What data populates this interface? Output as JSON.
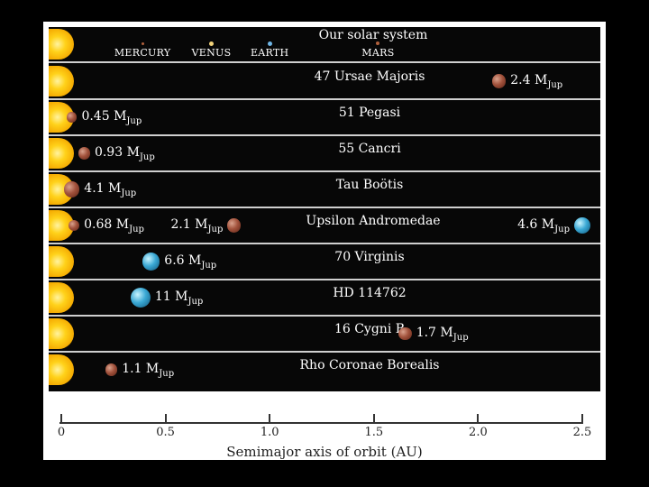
{
  "chart_data": {
    "type": "scatter",
    "xlabel": "Semimajor axis of orbit (AU)",
    "xlim": [
      0,
      2.5
    ],
    "xticks": [
      "0",
      "0.5",
      "1.0",
      "1.5",
      "2.0",
      "2.5"
    ],
    "mass_unit": "M",
    "mass_unit_sub": "Jup",
    "solar_system": {
      "name": "Our solar system",
      "planets": [
        {
          "label": "MERCURY",
          "au": 0.39,
          "color": "#b0603c"
        },
        {
          "label": "VENUS",
          "au": 0.72,
          "color": "#f2d27a"
        },
        {
          "label": "EARTH",
          "au": 1.0,
          "color": "#6fb6e6"
        },
        {
          "label": "MARS",
          "au": 1.52,
          "color": "#b0603c"
        }
      ]
    },
    "systems": [
      {
        "name": "47 Ursae Majoris",
        "planets": [
          {
            "au": 2.1,
            "mass": "2.4",
            "color": "red",
            "label_side": "right"
          }
        ]
      },
      {
        "name": "51 Pegasi",
        "planets": [
          {
            "au": 0.05,
            "mass": "0.45",
            "color": "red",
            "label_side": "right"
          }
        ]
      },
      {
        "name": "55 Cancri",
        "planets": [
          {
            "au": 0.11,
            "mass": "0.93",
            "color": "red",
            "label_side": "right"
          }
        ]
      },
      {
        "name": "Tau Boötis",
        "planets": [
          {
            "au": 0.05,
            "mass": "4.1",
            "color": "red",
            "label_side": "right"
          }
        ]
      },
      {
        "name": "Upsilon Andromedae",
        "planets": [
          {
            "au": 0.06,
            "mass": "0.68",
            "color": "red",
            "label_side": "right"
          },
          {
            "au": 0.83,
            "mass": "2.1",
            "color": "red",
            "label_side": "left"
          },
          {
            "au": 2.5,
            "mass": "4.6",
            "color": "blue",
            "label_side": "left"
          }
        ]
      },
      {
        "name": "70 Virginis",
        "planets": [
          {
            "au": 0.43,
            "mass": "6.6",
            "color": "blue",
            "label_side": "right"
          }
        ]
      },
      {
        "name": "HD 114762",
        "planets": [
          {
            "au": 0.38,
            "mass": "11",
            "color": "blue",
            "label_side": "right"
          }
        ]
      },
      {
        "name": "16 Cygni B",
        "planets": [
          {
            "au": 1.65,
            "mass": "1.7",
            "color": "red",
            "label_side": "right"
          }
        ]
      },
      {
        "name": "Rho Coronae Borealis",
        "planets": [
          {
            "au": 0.24,
            "mass": "1.1",
            "color": "red",
            "label_side": "right"
          }
        ]
      }
    ]
  }
}
